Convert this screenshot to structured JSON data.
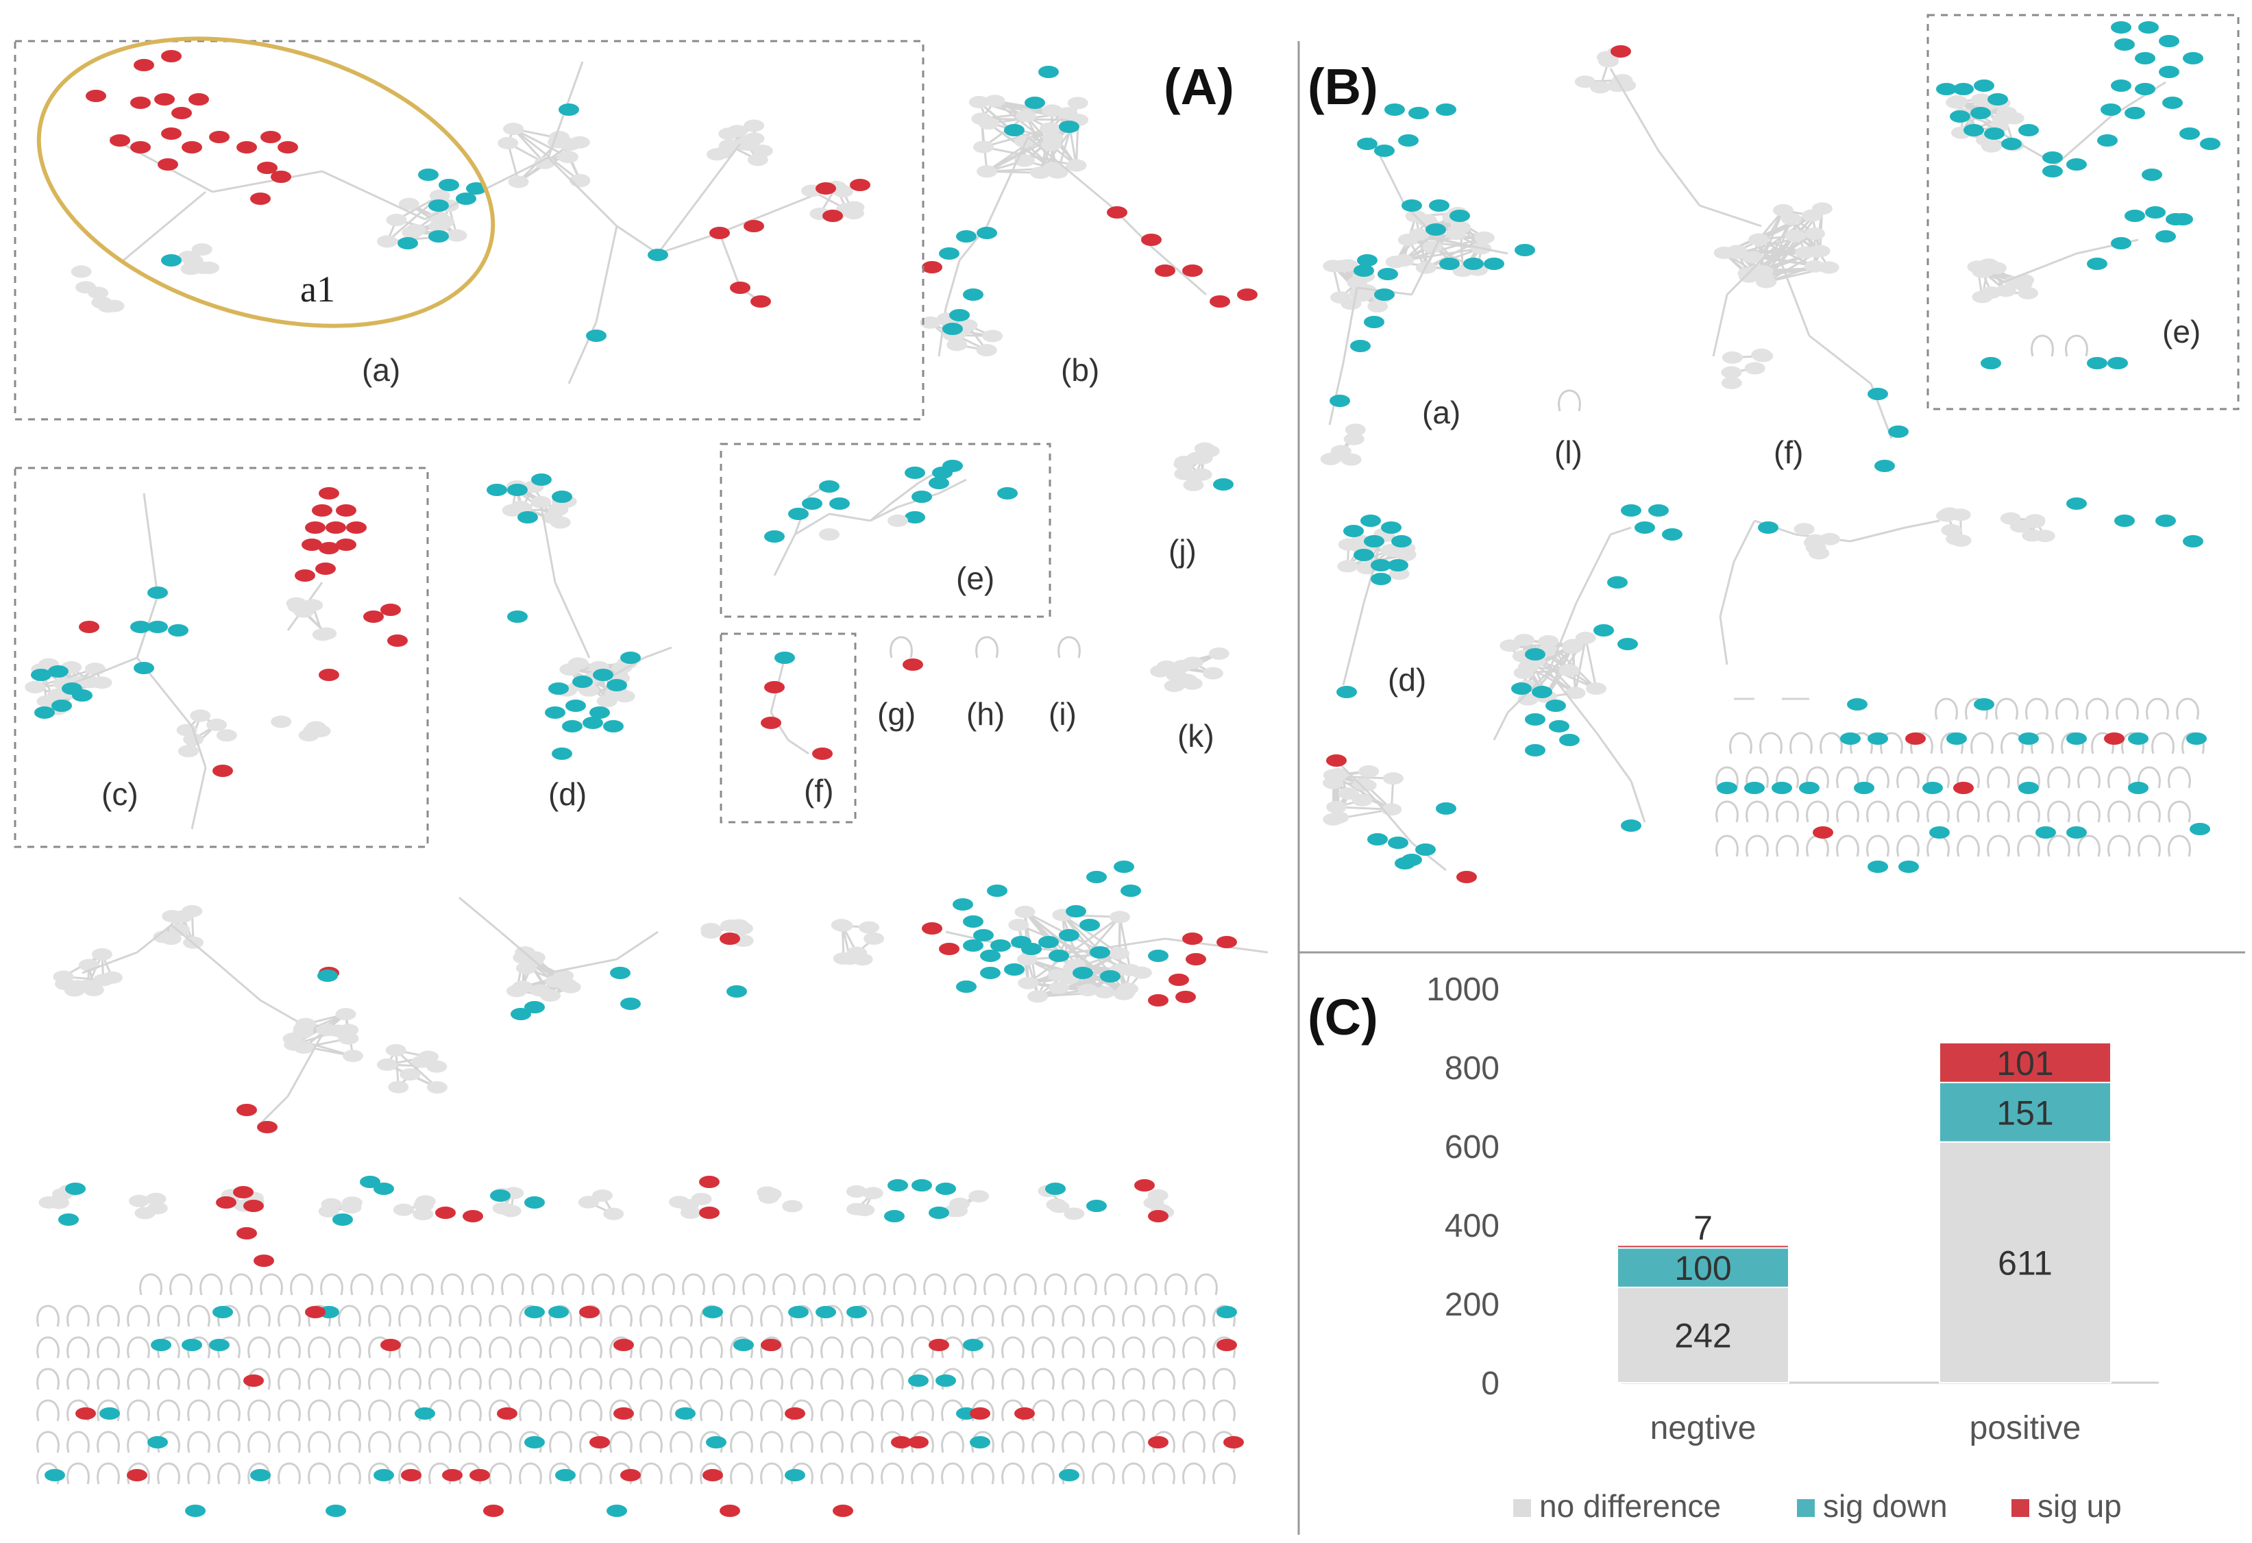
{
  "panels": {
    "A": "(A)",
    "B": "(B)",
    "C": "(C)"
  },
  "panel_A": {
    "labels": [
      "(a)",
      "(b)",
      "(c)",
      "(d)",
      "(e)",
      "(f)",
      "(g)",
      "(h)",
      "(i)",
      "(j)",
      "(k)"
    ],
    "cluster_label": "a1"
  },
  "panel_B": {
    "labels": [
      "(a)",
      "(l)",
      "(f)",
      "(e)",
      "(d)"
    ]
  },
  "colors": {
    "no_difference": "#dcdcdc",
    "sig_down": "#1fb2bc",
    "sig_up": "#d6313a",
    "neutral_node": "#e2e2e2",
    "ellipse": "#d8b55a"
  },
  "chart_data": {
    "type": "bar",
    "stacked": true,
    "categories": [
      "negtive",
      "positive"
    ],
    "series": [
      {
        "name": "no difference",
        "values": [
          242,
          611
        ],
        "color": "#dcdcdc"
      },
      {
        "name": "sig down",
        "values": [
          100,
          151
        ],
        "color": "#4fb3bc"
      },
      {
        "name": "sig up",
        "values": [
          7,
          101
        ],
        "color": "#d23d45"
      }
    ],
    "ylim": [
      0,
      1000
    ],
    "yticks": [
      "1000",
      "800",
      "600",
      "400",
      "200",
      "0"
    ],
    "legend": [
      "no difference",
      "sig down",
      "sig up"
    ],
    "legend_position": "bottom",
    "title": "",
    "xlabel": "",
    "ylabel": ""
  }
}
